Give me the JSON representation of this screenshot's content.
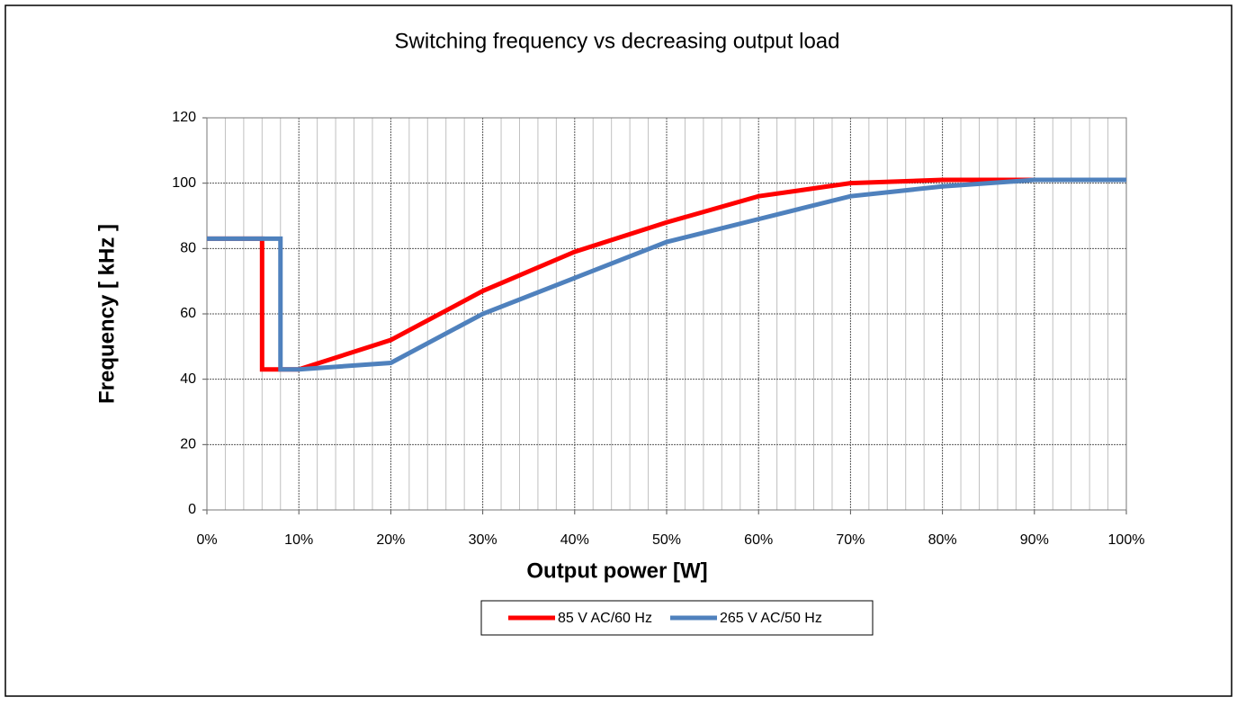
{
  "chart_data": {
    "type": "line",
    "title": "Switching frequency vs decreasing output load",
    "xlabel": "Output power [W]",
    "ylabel": "Frequency [ kHz ]",
    "xlim": [
      0,
      100
    ],
    "ylim": [
      0,
      120
    ],
    "xticks": [
      {
        "value": 0,
        "label": "0%"
      },
      {
        "value": 10,
        "label": "10%"
      },
      {
        "value": 20,
        "label": "20%"
      },
      {
        "value": 30,
        "label": "30%"
      },
      {
        "value": 40,
        "label": "40%"
      },
      {
        "value": 50,
        "label": "50%"
      },
      {
        "value": 60,
        "label": "60%"
      },
      {
        "value": 70,
        "label": "70%"
      },
      {
        "value": 80,
        "label": "80%"
      },
      {
        "value": 90,
        "label": "90%"
      },
      {
        "value": 100,
        "label": "100%"
      }
    ],
    "xminorticks": [
      2,
      4,
      6,
      8,
      12,
      14,
      16,
      18,
      22,
      24,
      26,
      28,
      32,
      34,
      36,
      38,
      42,
      44,
      46,
      48,
      52,
      54,
      56,
      58,
      62,
      64,
      66,
      68,
      72,
      74,
      76,
      78,
      82,
      84,
      86,
      88,
      92,
      94,
      96,
      98
    ],
    "yticks": [
      0,
      20,
      40,
      60,
      80,
      100,
      120
    ],
    "grid": true,
    "legend": "bottom",
    "series": [
      {
        "name": "85 V AC/60 Hz",
        "color": "#ff0000",
        "x": [
          0,
          6,
          6,
          10,
          20,
          30,
          40,
          50,
          60,
          70,
          80,
          90,
          100
        ],
        "values": [
          83,
          83,
          43,
          43,
          52,
          67,
          79,
          88,
          96,
          100,
          101,
          101,
          101
        ]
      },
      {
        "name": "265 V AC/50 Hz",
        "color": "#4f81bd",
        "x": [
          0,
          8,
          8,
          10,
          20,
          30,
          40,
          50,
          60,
          70,
          80,
          90,
          100
        ],
        "values": [
          83,
          83,
          43,
          43,
          45,
          60,
          71,
          82,
          89,
          96,
          99,
          101,
          101
        ]
      }
    ]
  }
}
